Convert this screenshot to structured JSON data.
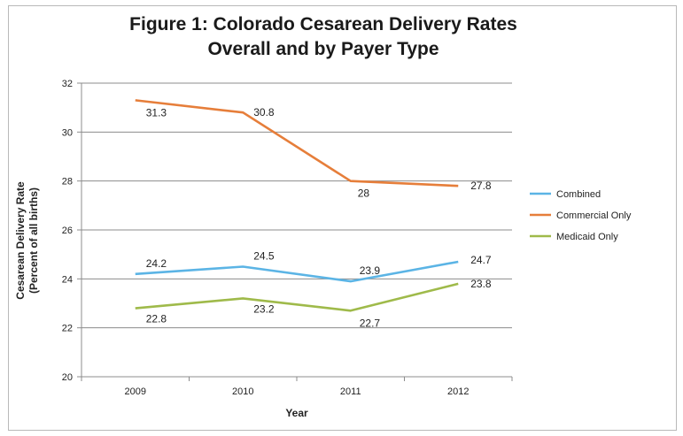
{
  "chart_data": {
    "type": "line",
    "title_line1": "Figure 1: Colorado Cesarean Delivery Rates",
    "title_line2": "Overall and by Payer Type",
    "xlabel": "Year",
    "ylabel_line1": "Cesarean Delivery Rate",
    "ylabel_line2": "(Percent of all births)",
    "categories": [
      "2009",
      "2010",
      "2011",
      "2012"
    ],
    "ylim": [
      20,
      32
    ],
    "yticks": [
      20,
      22,
      24,
      26,
      28,
      30,
      32
    ],
    "grid": true,
    "legend_position": "right",
    "series": [
      {
        "name": "Combined",
        "values": [
          24.2,
          24.5,
          23.9,
          24.7
        ],
        "color": "#5bb4e5",
        "labels": [
          "24.2",
          "24.5",
          "23.9",
          "24.7"
        ]
      },
      {
        "name": "Commercial Only",
        "values": [
          31.3,
          30.8,
          28.0,
          27.8
        ],
        "color": "#e67e3a",
        "labels": [
          "31.3",
          "30.8",
          "28",
          "27.8"
        ]
      },
      {
        "name": "Medicaid Only",
        "values": [
          22.8,
          23.2,
          22.7,
          23.8
        ],
        "color": "#9fba4a",
        "labels": [
          "22.8",
          "23.2",
          "22.7",
          "23.8"
        ]
      }
    ]
  }
}
